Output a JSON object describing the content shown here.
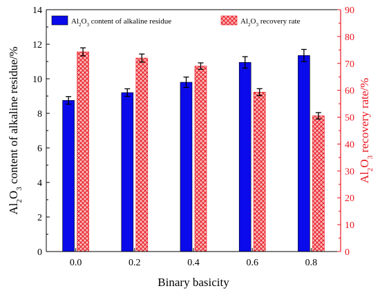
{
  "chart_data": {
    "type": "bar",
    "xlabel": "Binary basicity",
    "categories": [
      "0.0",
      "0.2",
      "0.4",
      "0.6",
      "0.8"
    ],
    "left_axis": {
      "label_parts": [
        "Al",
        "2",
        "O",
        "3",
        " content of alkaline residue/%"
      ],
      "ylim": [
        0,
        14
      ],
      "ticks": [
        "0",
        "2",
        "4",
        "6",
        "8",
        "10",
        "12",
        "14"
      ],
      "color": "#000000"
    },
    "right_axis": {
      "label_parts": [
        "Al",
        "2",
        "O",
        "3",
        " recovery rate/%"
      ],
      "ylim": [
        0,
        90
      ],
      "ticks": [
        "0",
        "10",
        "20",
        "30",
        "40",
        "50",
        "60",
        "70",
        "80",
        "90"
      ],
      "color": "#e8141e"
    },
    "series": [
      {
        "legend_parts": [
          "Al",
          "2",
          "O",
          "3",
          " content of alkaline residue"
        ],
        "axis": "left",
        "values": [
          8.75,
          9.2,
          9.8,
          10.95,
          11.35
        ],
        "errors": [
          0.22,
          0.22,
          0.3,
          0.33,
          0.35
        ],
        "color": "#0a0aea",
        "pattern": "solid"
      },
      {
        "legend_parts": [
          "Al",
          "2",
          "O",
          "3",
          " recovery rate"
        ],
        "axis": "right",
        "values": [
          74.3,
          72.0,
          69.0,
          59.3,
          50.5
        ],
        "errors": [
          1.5,
          1.5,
          1.2,
          1.3,
          1.2
        ],
        "color": "#f05a5a",
        "pattern": "crosshatch"
      }
    ],
    "legend_position": "top",
    "grid": false
  }
}
